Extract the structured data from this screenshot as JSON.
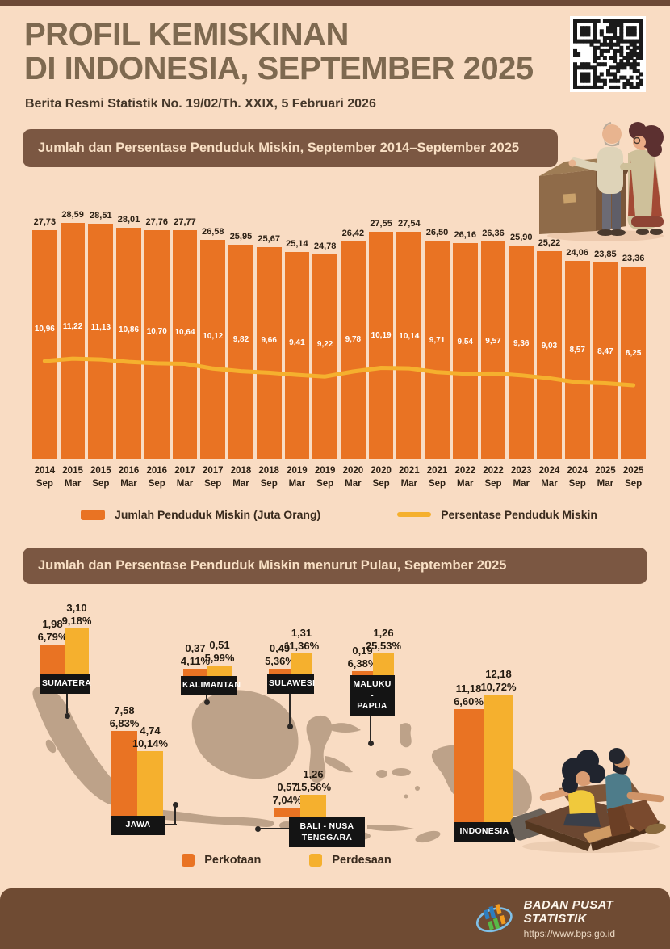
{
  "header": {
    "title_line1": "PROFIL KEMISKINAN",
    "title_line2": "DI INDONESIA, SEPTEMBER 2025",
    "subtitle": "Berita Resmi Statistik No. 19/02/Th. XXIX, 5 Februari 2026"
  },
  "section1": {
    "title": "Jumlah dan Persentase Penduduk Miskin, September 2014–September 2025"
  },
  "section2": {
    "title": "Jumlah dan Persentase Penduduk Miskin menurut Pulau, September 2025"
  },
  "legend1": [
    {
      "label": "Jumlah Penduduk Miskin (Juta Orang)",
      "color": "#e97323",
      "marker": "bar"
    },
    {
      "label": "Persentase Penduduk Miskin",
      "color": "#f5b02e",
      "marker": "line"
    }
  ],
  "legend2": [
    {
      "label": "Perkotaan",
      "color": "#e97323"
    },
    {
      "label": "Perdesaan",
      "color": "#f5b02e"
    }
  ],
  "footer": {
    "org": "BADAN PUSAT STATISTIK",
    "url": "https://www.bps.go.id"
  },
  "colors": {
    "background": "#f9dcc3",
    "accent_orange": "#e97323",
    "accent_gold": "#f5b02e",
    "band_brown": "#7b5742",
    "footer_brown": "#6f4b33",
    "map_tan": "#bda289",
    "label_black": "#141414"
  },
  "chart_data": [
    {
      "type": "bar",
      "title": "Jumlah dan Persentase Penduduk Miskin, September 2014–September 2025",
      "grid": false,
      "legend_position": "bottom",
      "categories": [
        "2014 Sep",
        "2015 Mar",
        "2015 Sep",
        "2016 Mar",
        "2016 Sep",
        "2017 Mar",
        "2017 Sep",
        "2018 Mar",
        "2018 Sep",
        "2019 Mar",
        "2019 Sep",
        "2020 Mar",
        "2020 Sep",
        "2021 Mar",
        "2021 Sep",
        "2022 Mar",
        "2022 Sep",
        "2023 Mar",
        "2024 Mar",
        "2024 Sep",
        "2025 Mar",
        "2025 Sep"
      ],
      "series": [
        {
          "name": "Jumlah Penduduk Miskin (Juta Orang)",
          "type": "bar",
          "color": "#e97323",
          "values": [
            27.73,
            28.59,
            28.51,
            28.01,
            27.76,
            27.77,
            26.58,
            25.95,
            25.67,
            25.14,
            24.78,
            26.42,
            27.55,
            27.54,
            26.5,
            26.16,
            26.36,
            25.9,
            25.22,
            24.06,
            23.85,
            23.36
          ],
          "labels": [
            "27,73",
            "28,59",
            "28,51",
            "28,01",
            "27,76",
            "27,77",
            "26,58",
            "25,95",
            "25,67",
            "25,14",
            "24,78",
            "26,42",
            "27,55",
            "27,54",
            "26,50",
            "26,16",
            "26,36",
            "25,90",
            "25,22",
            "24,06",
            "23,85",
            "23,36"
          ]
        },
        {
          "name": "Persentase Penduduk Miskin",
          "type": "line",
          "color": "#f5b02e",
          "values": [
            10.96,
            11.22,
            11.13,
            10.86,
            10.7,
            10.64,
            10.12,
            9.82,
            9.66,
            9.41,
            9.22,
            9.78,
            10.19,
            10.14,
            9.71,
            9.54,
            9.57,
            9.36,
            9.03,
            8.57,
            8.47,
            8.25
          ],
          "labels": [
            "10,96",
            "11,22",
            "11,13",
            "10,86",
            "10,70",
            "10,64",
            "10,12",
            "9,82",
            "9,66",
            "9,41",
            "9,22",
            "9,78",
            "10,19",
            "10,14",
            "9,71",
            "9,54",
            "9,57",
            "9,36",
            "9,03",
            "8,57",
            "8,47",
            "8,25"
          ]
        }
      ]
    },
    {
      "type": "bar",
      "title": "Jumlah dan Persentase Penduduk Miskin menurut Pulau, September 2025",
      "series_names": [
        "Perkotaan",
        "Perdesaan"
      ],
      "islands": [
        {
          "name": "SUMATERA",
          "perkotaan": {
            "value": 1.98,
            "label": "1,98",
            "pct": 6.79,
            "pct_label": "6,79%"
          },
          "perdesaan": {
            "value": 3.1,
            "label": "3,10",
            "pct": 9.18,
            "pct_label": "9,18%"
          }
        },
        {
          "name": "KALIMANTAN",
          "perkotaan": {
            "value": 0.37,
            "label": "0,37",
            "pct": 4.11,
            "pct_label": "4,11%"
          },
          "perdesaan": {
            "value": 0.51,
            "label": "0,51",
            "pct": 5.99,
            "pct_label": "5,99%"
          }
        },
        {
          "name": "SULAWESI",
          "perkotaan": {
            "value": 0.49,
            "label": "0,49",
            "pct": 5.36,
            "pct_label": "5,36%"
          },
          "perdesaan": {
            "value": 1.31,
            "label": "1,31",
            "pct": 11.36,
            "pct_label": "11,36%"
          }
        },
        {
          "name": "MALUKU -\nPAPUA",
          "perkotaan": {
            "value": 0.19,
            "label": "0,19",
            "pct": 6.38,
            "pct_label": "6,38%"
          },
          "perdesaan": {
            "value": 1.26,
            "label": "1,26",
            "pct": 25.53,
            "pct_label": "25,53%"
          }
        },
        {
          "name": "JAWA",
          "perkotaan": {
            "value": 7.58,
            "label": "7,58",
            "pct": 6.83,
            "pct_label": "6,83%"
          },
          "perdesaan": {
            "value": 4.74,
            "label": "4,74",
            "pct": 10.14,
            "pct_label": "10,14%"
          }
        },
        {
          "name": "BALI - NUSA\nTENGGARA",
          "perkotaan": {
            "value": 0.57,
            "label": "0,57",
            "pct": 7.04,
            "pct_label": "7,04%"
          },
          "perdesaan": {
            "value": 1.26,
            "label": "1,26",
            "pct": 15.56,
            "pct_label": "15,56%"
          }
        },
        {
          "name": "INDONESIA",
          "perkotaan": {
            "value": 11.18,
            "label": "11,18",
            "pct": 6.6,
            "pct_label": "6,60%"
          },
          "perdesaan": {
            "value": 12.18,
            "label": "12,18",
            "pct": 10.72,
            "pct_label": "10,72%"
          }
        }
      ]
    }
  ]
}
